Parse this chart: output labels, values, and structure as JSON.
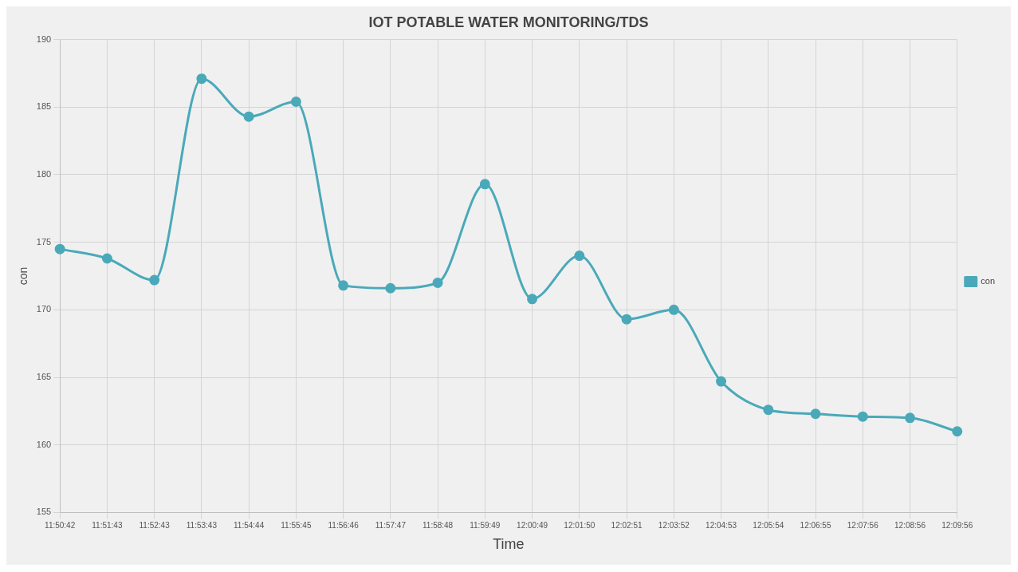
{
  "chart_data": {
    "type": "line",
    "title": "IOT POTABLE WATER MONITORING/TDS",
    "xlabel": "Time",
    "ylabel": "con",
    "categories": [
      "11:50:42",
      "11:51:43",
      "11:52:43",
      "11:53:43",
      "11:54:44",
      "11:55:45",
      "11:56:46",
      "11:57:47",
      "11:58:48",
      "11:59:49",
      "12:00:49",
      "12:01:50",
      "12:02:51",
      "12:03:52",
      "12:04:53",
      "12:05:54",
      "12:06:55",
      "12:07:56",
      "12:08:56",
      "12:09:56"
    ],
    "series": [
      {
        "name": "con",
        "color": "#4aa9b9",
        "values": [
          174.5,
          173.8,
          172.2,
          187.1,
          184.3,
          185.4,
          171.8,
          171.6,
          172.0,
          179.3,
          170.8,
          174.0,
          169.3,
          170.0,
          164.7,
          162.6,
          162.3,
          162.1,
          162.0,
          161.0
        ]
      }
    ],
    "ylim": [
      155,
      190
    ],
    "yticks": [
      155,
      160,
      165,
      170,
      175,
      180,
      185,
      190
    ],
    "grid": true,
    "legend": "right",
    "marker": "circle",
    "line_style": "solid"
  }
}
